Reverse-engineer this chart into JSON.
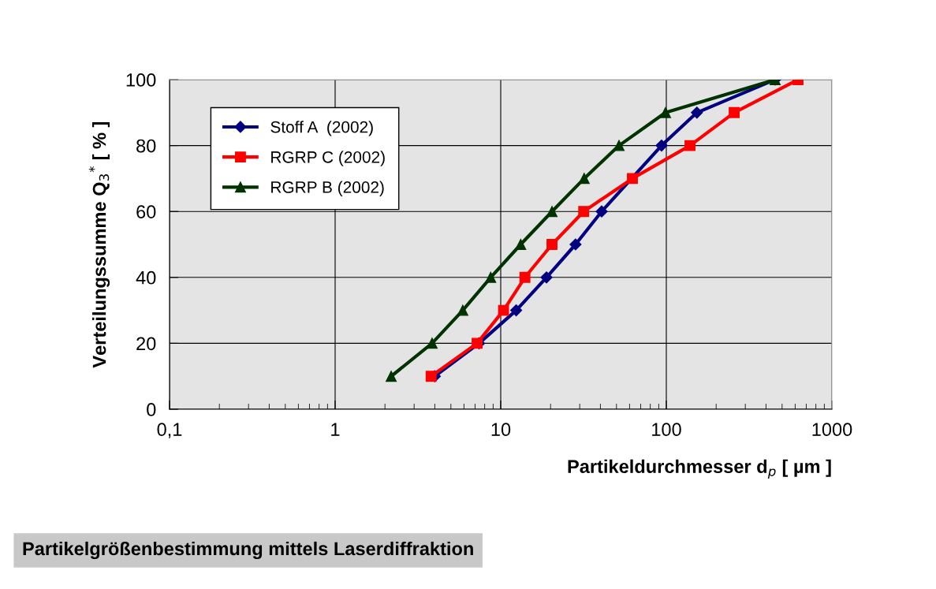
{
  "chart_data": {
    "type": "line",
    "xlabel": "Partikeldurchmesser d$_{p}$ [ µm ]",
    "ylabel": "Verteilungssumme Q$_{3}$$^{*}$ [ % ]",
    "log": "x",
    "grid": true,
    "legend": "top left",
    "line_style": "solid",
    "xlim": [
      0.1,
      1000
    ],
    "xticks": [
      {
        "value": 0.1,
        "label": "0,1"
      },
      1,
      10,
      100,
      1000
    ],
    "ylim": [
      0,
      100
    ],
    "yticks": [
      0,
      20,
      40,
      60,
      80,
      100
    ],
    "series": [
      {
        "name": "Stoff A  (2002)",
        "color": "#000080",
        "marker": "diamond",
        "x": [
          4.0,
          7.4,
          12.4,
          18.9,
          28.3,
          40.7,
          93.6,
          153,
          454
        ],
        "values": [
          10,
          20,
          30,
          40,
          50,
          60,
          80,
          90,
          100
        ]
      },
      {
        "name": "RGRP C (2002)",
        "color": "#ff0000",
        "marker": "square",
        "x": [
          3.8,
          7.2,
          10.4,
          14.0,
          20.4,
          31.7,
          62.4,
          139,
          257,
          624
        ],
        "values": [
          10,
          20,
          30,
          40,
          50,
          60,
          70,
          80,
          90,
          100
        ]
      },
      {
        "name": "RGRP B (2002)",
        "color": "#003300",
        "marker": "triangle",
        "x": [
          2.18,
          3.85,
          5.9,
          8.7,
          13.2,
          20.4,
          31.9,
          51.8,
          98.9,
          454
        ],
        "values": [
          10,
          20,
          30,
          40,
          50,
          60,
          70,
          80,
          90,
          100
        ]
      }
    ],
    "annotations": [
      "Partikelgrößenbestimmung mittels Laserdiffraktion"
    ]
  }
}
